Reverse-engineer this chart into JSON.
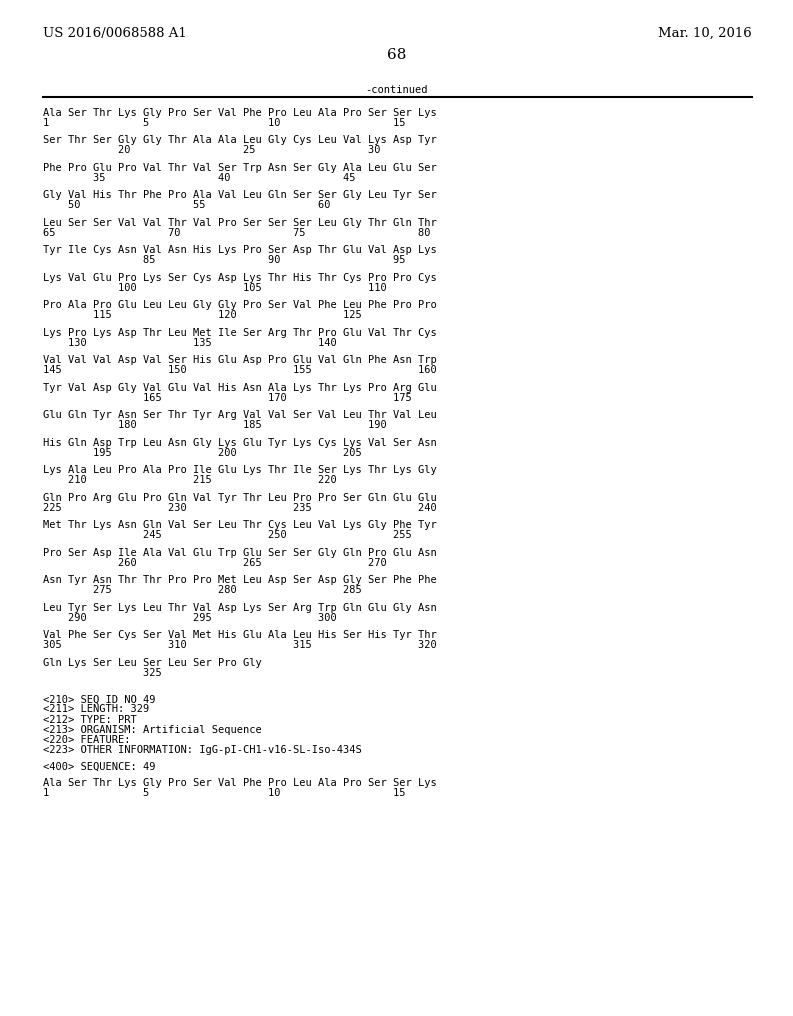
{
  "header_left": "US 2016/0068588 A1",
  "header_right": "Mar. 10, 2016",
  "page_number": "68",
  "continued_label": "-continued",
  "background_color": "#ffffff",
  "text_color": "#000000",
  "font_size": 7.5,
  "header_font_size": 9.5,
  "page_num_font_size": 11,
  "sequence_lines": [
    [
      "Ala Ser Thr Lys Gly Pro Ser Val Phe Pro Leu Ala Pro Ser Ser Lys",
      "1               5                   10                  15"
    ],
    [
      "Ser Thr Ser Gly Gly Thr Ala Ala Leu Gly Cys Leu Val Lys Asp Tyr",
      "            20                  25                  30"
    ],
    [
      "Phe Pro Glu Pro Val Thr Val Ser Trp Asn Ser Gly Ala Leu Glu Ser",
      "        35                  40                  45"
    ],
    [
      "Gly Val His Thr Phe Pro Ala Val Leu Gln Ser Ser Gly Leu Tyr Ser",
      "    50                  55                  60"
    ],
    [
      "Leu Ser Ser Val Val Thr Val Pro Ser Ser Ser Leu Gly Thr Gln Thr",
      "65                  70                  75                  80"
    ],
    [
      "Tyr Ile Cys Asn Val Asn His Lys Pro Ser Asp Thr Glu Val Asp Lys",
      "                85                  90                  95"
    ],
    [
      "Lys Val Glu Pro Lys Ser Cys Asp Lys Thr His Thr Cys Pro Pro Cys",
      "            100                 105                 110"
    ],
    [
      "Pro Ala Pro Glu Leu Leu Gly Gly Pro Ser Val Phe Leu Phe Pro Pro",
      "        115                 120                 125"
    ],
    [
      "Lys Pro Lys Asp Thr Leu Met Ile Ser Arg Thr Pro Glu Val Thr Cys",
      "    130                 135                 140"
    ],
    [
      "Val Val Val Asp Val Ser His Glu Asp Pro Glu Val Gln Phe Asn Trp",
      "145                 150                 155                 160"
    ],
    [
      "Tyr Val Asp Gly Val Glu Val His Asn Ala Lys Thr Lys Pro Arg Glu",
      "                165                 170                 175"
    ],
    [
      "Glu Gln Tyr Asn Ser Thr Tyr Arg Val Val Ser Val Leu Thr Val Leu",
      "            180                 185                 190"
    ],
    [
      "His Gln Asp Trp Leu Asn Gly Lys Glu Tyr Lys Cys Lys Val Ser Asn",
      "        195                 200                 205"
    ],
    [
      "Lys Ala Leu Pro Ala Pro Ile Glu Lys Thr Ile Ser Lys Thr Lys Gly",
      "    210                 215                 220"
    ],
    [
      "Gln Pro Arg Glu Pro Gln Val Tyr Thr Leu Pro Pro Ser Gln Glu Glu",
      "225                 230                 235                 240"
    ],
    [
      "Met Thr Lys Asn Gln Val Ser Leu Thr Cys Leu Val Lys Gly Phe Tyr",
      "                245                 250                 255"
    ],
    [
      "Pro Ser Asp Ile Ala Val Glu Trp Glu Ser Ser Gly Gln Pro Glu Asn",
      "            260                 265                 270"
    ],
    [
      "Asn Tyr Asn Thr Thr Pro Pro Met Leu Asp Ser Asp Gly Ser Phe Phe",
      "        275                 280                 285"
    ],
    [
      "Leu Tyr Ser Lys Leu Thr Val Asp Lys Ser Arg Trp Gln Glu Gly Asn",
      "    290                 295                 300"
    ],
    [
      "Val Phe Ser Cys Ser Val Met His Glu Ala Leu His Ser His Tyr Thr",
      "305                 310                 315                 320"
    ],
    [
      "Gln Lys Ser Leu Ser Leu Ser Pro Gly",
      "                325"
    ]
  ],
  "metadata_lines": [
    "",
    "<210> SEQ ID NO 49",
    "<211> LENGTH: 329",
    "<212> TYPE: PRT",
    "<213> ORGANISM: Artificial Sequence",
    "<220> FEATURE:",
    "<223> OTHER INFORMATION: IgG-pI-CH1-v16-SL-Iso-434S",
    "",
    "<400> SEQUENCE: 49",
    "",
    "Ala Ser Thr Lys Gly Pro Ser Val Phe Pro Leu Ala Pro Ser Ser Lys",
    "1               5                   10                  15"
  ]
}
